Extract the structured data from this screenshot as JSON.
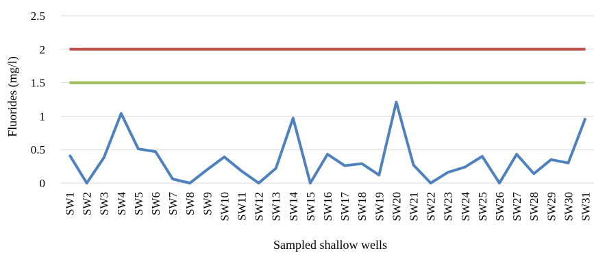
{
  "chart_data": {
    "type": "line",
    "xlabel": "Sampled shallow wells",
    "ylabel": "Fluorides (mg/l)",
    "ylim": [
      0,
      2.5
    ],
    "yticks": [
      "0",
      "0.5",
      "1",
      "1.5",
      "2",
      "2.5"
    ],
    "grid": true,
    "categories": [
      "SW1",
      "SW2",
      "SW3",
      "SW4",
      "SW5",
      "SW6",
      "SW7",
      "SW8",
      "SW9",
      "SW10",
      "SW11",
      "SW12",
      "SW13",
      "SW14",
      "SW15",
      "SW16",
      "SW17",
      "SW18",
      "SW19",
      "SW20",
      "SW21",
      "SW22",
      "SW23",
      "SW24",
      "SW25",
      "SW26",
      "SW27",
      "SW28",
      "SW29",
      "SW30",
      "SW31"
    ],
    "series": [
      {
        "color": "#4f81bd",
        "values": [
          0.42,
          0.0,
          0.38,
          1.04,
          0.51,
          0.47,
          0.06,
          0.0,
          0.2,
          0.39,
          0.18,
          0.0,
          0.22,
          0.97,
          0.0,
          0.43,
          0.26,
          0.29,
          0.12,
          1.21,
          0.27,
          0.0,
          0.16,
          0.24,
          0.4,
          0.0,
          0.43,
          0.14,
          0.35,
          0.3,
          0.97
        ]
      },
      {
        "color": "#c0504d",
        "values": [
          2,
          2,
          2,
          2,
          2,
          2,
          2,
          2,
          2,
          2,
          2,
          2,
          2,
          2,
          2,
          2,
          2,
          2,
          2,
          2,
          2,
          2,
          2,
          2,
          2,
          2,
          2,
          2,
          2,
          2,
          2
        ]
      },
      {
        "color": "#9bbb59",
        "values": [
          1.5,
          1.5,
          1.5,
          1.5,
          1.5,
          1.5,
          1.5,
          1.5,
          1.5,
          1.5,
          1.5,
          1.5,
          1.5,
          1.5,
          1.5,
          1.5,
          1.5,
          1.5,
          1.5,
          1.5,
          1.5,
          1.5,
          1.5,
          1.5,
          1.5,
          1.5,
          1.5,
          1.5,
          1.5,
          1.5,
          1.5
        ]
      }
    ]
  }
}
